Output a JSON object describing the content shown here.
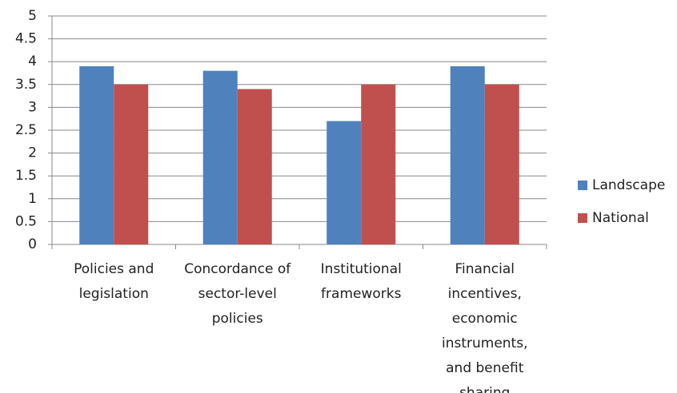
{
  "chart_data": {
    "type": "bar",
    "categories": [
      "Policies and legislation",
      "Concordance of sector-level policies",
      "Institutional frameworks",
      "Financial incentives, economic instruments, and benefit sharing"
    ],
    "series": [
      {
        "name": "Landscape",
        "color": "#4f81bd",
        "values": [
          3.9,
          3.8,
          2.7,
          3.9
        ]
      },
      {
        "name": "National",
        "color": "#c0504d",
        "values": [
          3.5,
          3.4,
          3.5,
          3.5
        ]
      }
    ],
    "ylim": [
      0,
      5
    ],
    "yticks": [
      0,
      0.5,
      1,
      1.5,
      2,
      2.5,
      3,
      3.5,
      4,
      4.5,
      5
    ],
    "grid": true,
    "legend": "right"
  }
}
